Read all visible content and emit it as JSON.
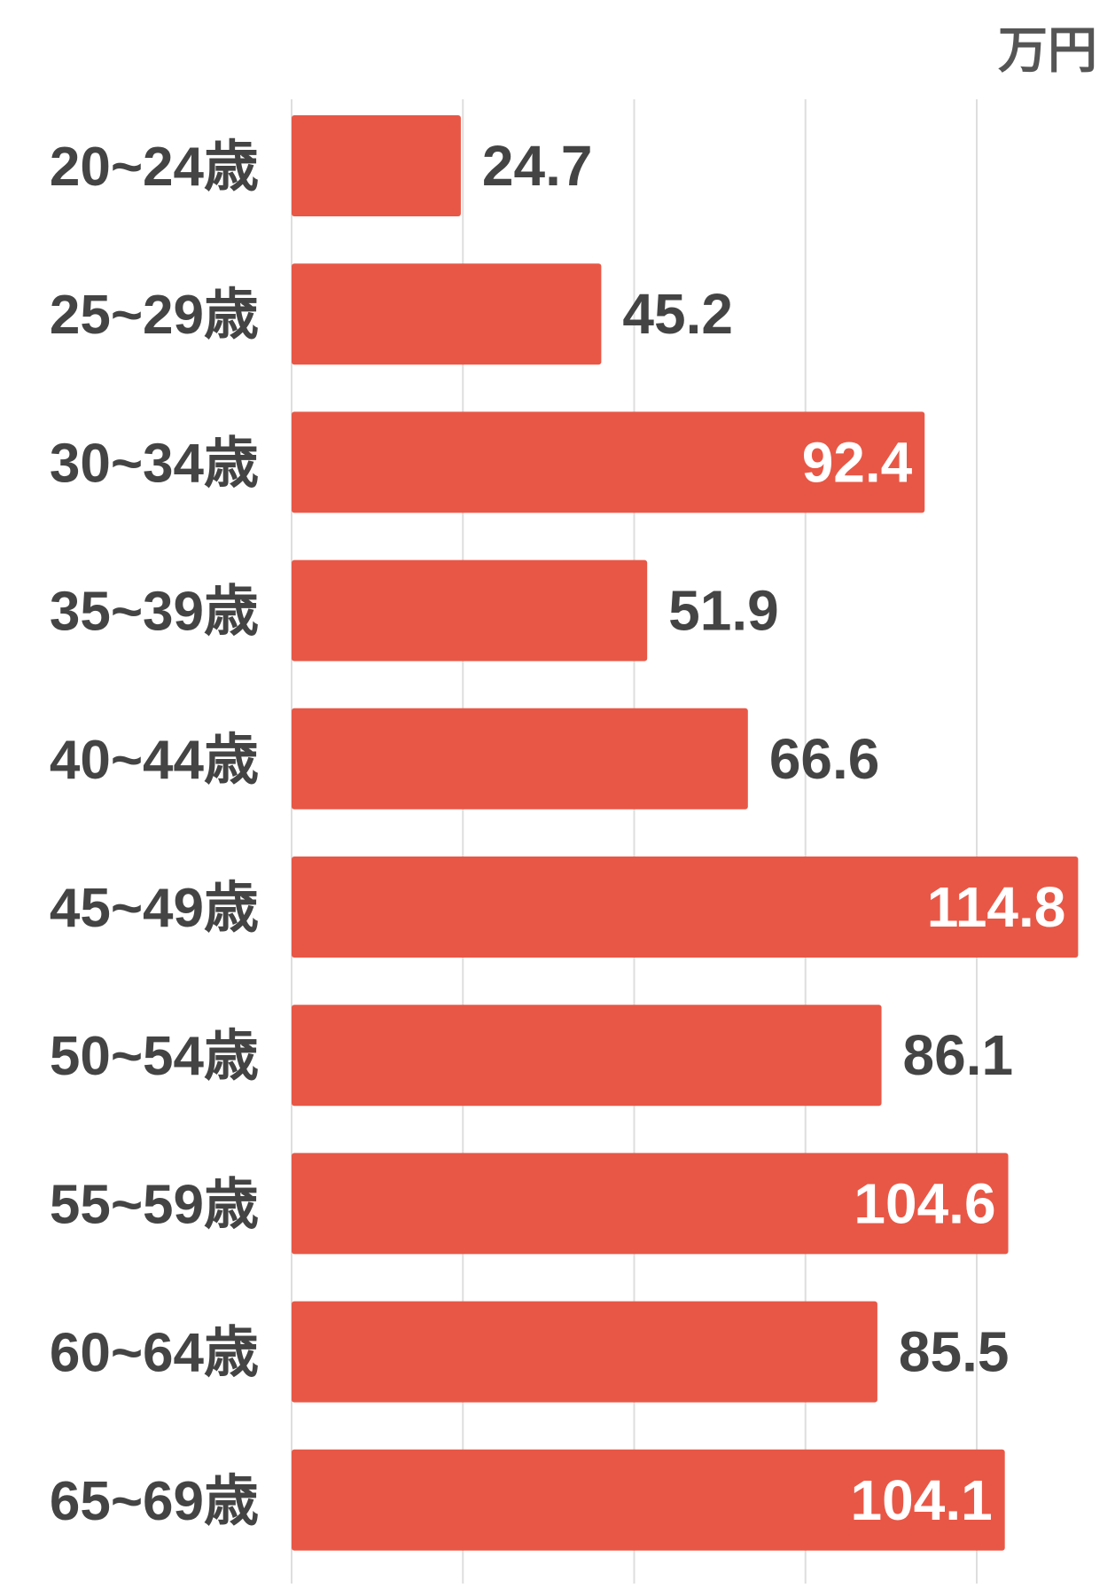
{
  "chart_data": {
    "type": "bar",
    "orientation": "horizontal",
    "unit": "万円",
    "categories": [
      "20~24歳",
      "25~29歳",
      "30~34歳",
      "35~39歳",
      "40~44歳",
      "45~49歳",
      "50~54歳",
      "55~59歳",
      "60~64歳",
      "65~69歳"
    ],
    "values": [
      24.7,
      45.2,
      92.4,
      51.9,
      66.6,
      114.8,
      86.1,
      104.6,
      85.5,
      104.1
    ],
    "value_labels": [
      "24.7",
      "45.2",
      "92.4",
      "51.9",
      "66.6",
      "114.8",
      "86.1",
      "104.6",
      "85.5",
      "104.1"
    ],
    "xlim": [
      0,
      114.8
    ],
    "gridlines": [
      0,
      25,
      50,
      75,
      100
    ],
    "grid": true,
    "legend": "none",
    "title": "",
    "xlabel": "",
    "ylabel": ""
  },
  "colors": {
    "bar": "#e85746",
    "grid": "#dedede",
    "text": "#444444",
    "label_inside": "#ffffff"
  }
}
